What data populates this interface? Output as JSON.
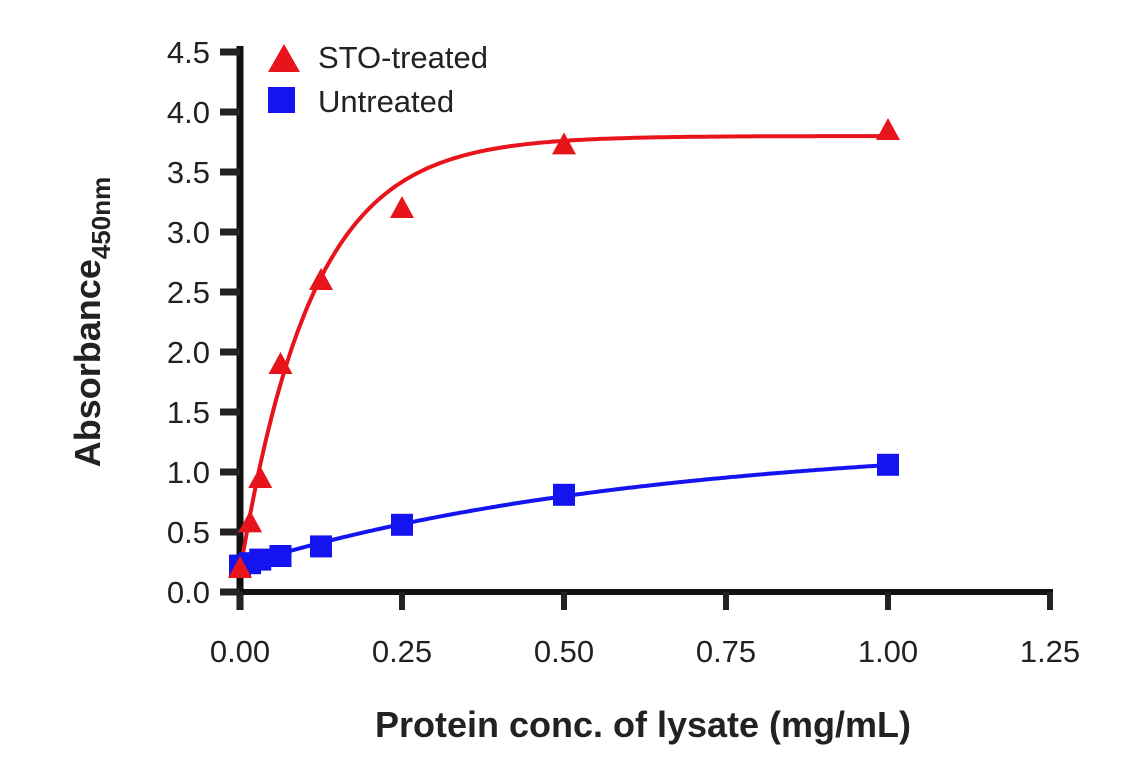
{
  "chart_data": {
    "type": "scatter",
    "title": "",
    "xlabel": "Protein conc. of lysate (mg/mL)",
    "ylabel": "Absorbance",
    "ylabel_subscript": "450nm",
    "xlim": [
      0,
      1.25
    ],
    "ylim": [
      0,
      4.5
    ],
    "xticks": [
      "0.00",
      "0.25",
      "0.50",
      "0.75",
      "1.00",
      "1.25"
    ],
    "yticks": [
      "0.0",
      "0.5",
      "1.0",
      "1.5",
      "2.0",
      "2.5",
      "3.0",
      "3.5",
      "4.0",
      "4.5"
    ],
    "grid": false,
    "legend_position": "top-left",
    "series": [
      {
        "name": "STO-treated",
        "marker": "triangle",
        "color": "#e8141b",
        "x": [
          0,
          0.0156,
          0.03125,
          0.0625,
          0.125,
          0.25,
          0.5,
          1.0
        ],
        "y": [
          0.2,
          0.58,
          0.95,
          1.9,
          2.6,
          3.2,
          3.73,
          3.85
        ],
        "fit": "saturation",
        "fit_params": {
          "top": 3.8,
          "k": 9.0,
          "bottom": 0.17
        }
      },
      {
        "name": "Untreated",
        "marker": "square",
        "color": "#1414f0",
        "x": [
          0,
          0.0156,
          0.03125,
          0.0625,
          0.125,
          0.25,
          0.5,
          1.0
        ],
        "y": [
          0.22,
          0.24,
          0.27,
          0.3,
          0.38,
          0.56,
          0.81,
          1.06
        ],
        "fit": "saturation",
        "fit_params": {
          "top": 1.27,
          "k": 1.6,
          "bottom": 0.22
        }
      }
    ]
  }
}
